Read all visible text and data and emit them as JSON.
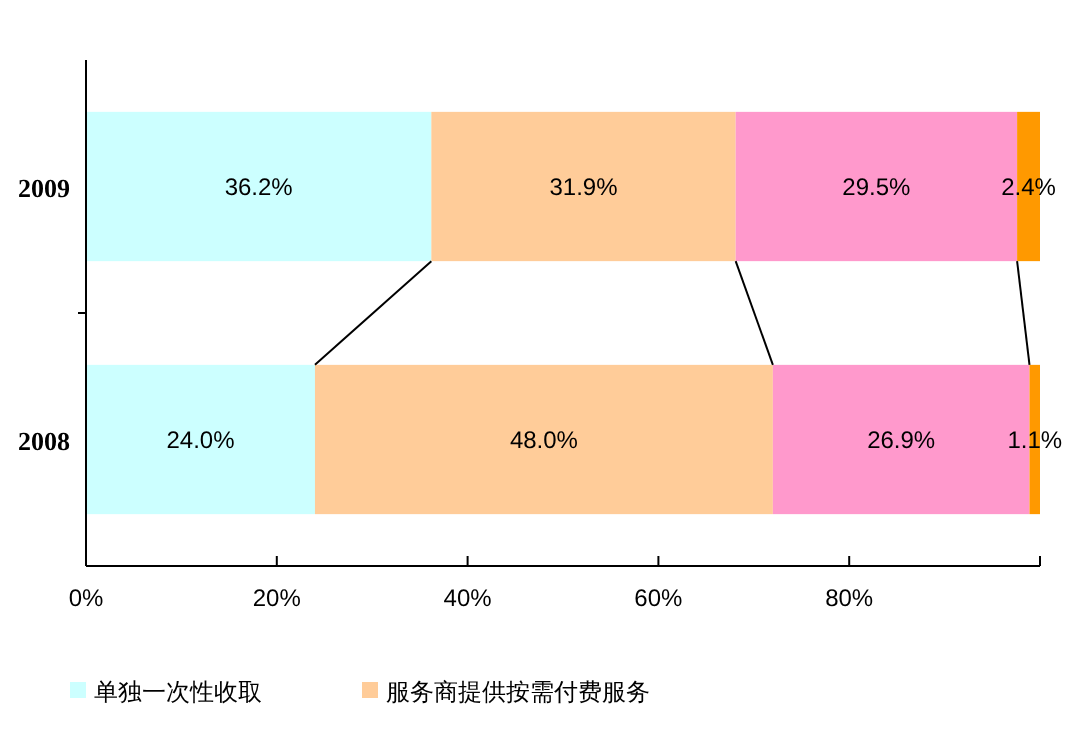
{
  "chart_data": {
    "type": "bar",
    "orientation": "horizontal",
    "stacked": true,
    "data_labels": true,
    "legend": "bottom",
    "categories": [
      "2009",
      "2008"
    ],
    "xlim": [
      0,
      100
    ],
    "xticks": [
      {
        "value": 0,
        "label": "0%"
      },
      {
        "value": 20,
        "label": "20%"
      },
      {
        "value": 40,
        "label": "40%"
      },
      {
        "value": 60,
        "label": "60%"
      },
      {
        "value": 80,
        "label": "80%"
      },
      {
        "value": 100,
        "label": null
      }
    ],
    "series": [
      {
        "name": "单独一次性收取",
        "color": "#ccffff",
        "values": [
          36.2,
          24.0
        ],
        "value_labels": [
          "36.2%",
          "24.0%"
        ]
      },
      {
        "name": "服务商提供按需付费服务",
        "color": "#ffcc99",
        "values": [
          31.9,
          48.0
        ],
        "value_labels": [
          "31.9%",
          "48.0%"
        ]
      },
      {
        "color": "#ff99cc",
        "values": [
          29.5,
          26.9
        ],
        "value_labels": [
          "29.5%",
          "26.9%"
        ]
      },
      {
        "color": "#ff9900",
        "values": [
          2.4,
          1.1
        ],
        "value_labels": [
          "2.4%",
          "1.1%"
        ]
      }
    ]
  }
}
